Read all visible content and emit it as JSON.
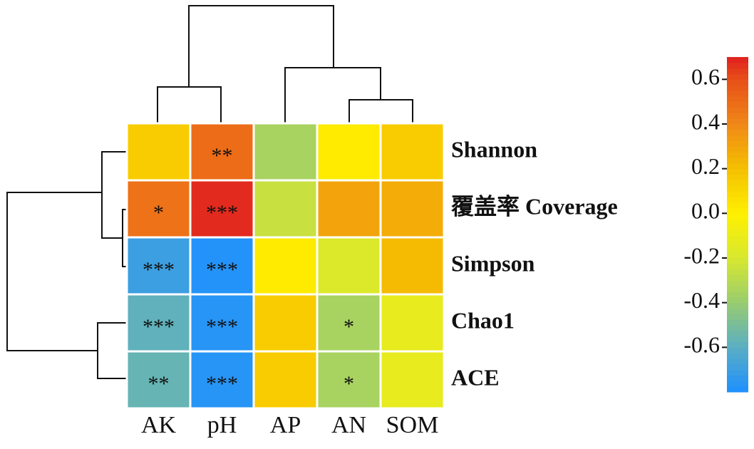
{
  "chart_data": {
    "type": "heatmap",
    "rows": [
      "Shannon",
      "覆盖率 Coverage",
      "Simpson",
      "Chao1",
      "ACE"
    ],
    "columns": [
      "AK",
      "pH",
      "AP",
      "AN",
      "SOM"
    ],
    "values": [
      [
        0.15,
        0.5,
        -0.35,
        0.02,
        0.15
      ],
      [
        0.48,
        0.68,
        -0.25,
        0.3,
        0.27
      ],
      [
        -0.7,
        -0.78,
        0.02,
        -0.18,
        0.22
      ],
      [
        -0.58,
        -0.77,
        0.15,
        -0.35,
        -0.12
      ],
      [
        -0.56,
        -0.77,
        0.15,
        -0.35,
        -0.12
      ]
    ],
    "significance": [
      [
        null,
        "**",
        null,
        null,
        null
      ],
      [
        "*",
        "***",
        null,
        null,
        null
      ],
      [
        "***",
        "***",
        null,
        null,
        null
      ],
      [
        "***",
        "***",
        null,
        "*",
        null
      ],
      [
        "**",
        "***",
        null,
        "*",
        null
      ]
    ],
    "clim": [
      -0.8,
      0.7
    ],
    "cticks": [
      0.6,
      0.4,
      0.2,
      {
        "value": 0,
        "label": "0.0"
      },
      -0.2,
      -0.4,
      -0.6
    ]
  }
}
